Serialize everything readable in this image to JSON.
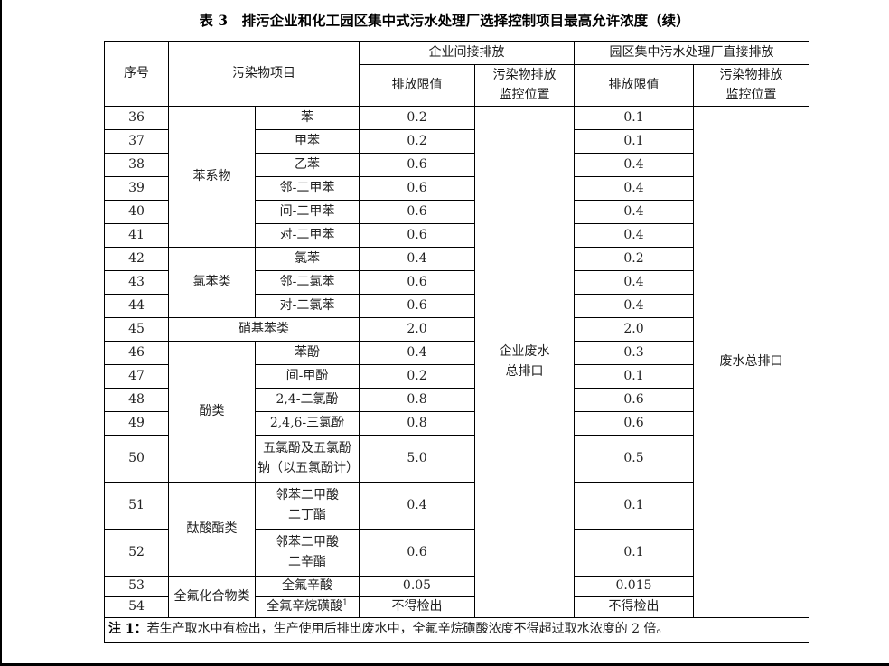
{
  "page": {
    "title": "表 3　排污企业和化工园区集中式污水处理厂选择控制项目最高允许浓度（续）"
  },
  "table": {
    "header": {
      "serial": "序号",
      "pollutant": "污染物项目",
      "group_enterprise": "企业间接排放",
      "group_park": "园区集中污水处理厂直接排放",
      "limit_enterprise": "排放限值",
      "limit_park": "排放限值",
      "monitor_enterprise_lines": [
        "污染物排放",
        "监控位置"
      ],
      "monitor_park_lines": [
        "污染物排放",
        "监控位置"
      ]
    },
    "monitor_enterprise_lines": [
      "企业废水",
      "总排口"
    ],
    "monitor_park_lines": [
      "废水总排口"
    ],
    "rows": [
      {
        "no": "36",
        "category": "苯系物",
        "category_rowspan": 6,
        "item": "苯",
        "limit1": "0.2",
        "limit2": "0.1"
      },
      {
        "no": "37",
        "item": "甲苯",
        "limit1": "0.2",
        "limit2": "0.1"
      },
      {
        "no": "38",
        "item": "乙苯",
        "limit1": "0.6",
        "limit2": "0.4"
      },
      {
        "no": "39",
        "item": "邻-二甲苯",
        "limit1": "0.6",
        "limit2": "0.4"
      },
      {
        "no": "40",
        "item": "间-二甲苯",
        "limit1": "0.6",
        "limit2": "0.4"
      },
      {
        "no": "41",
        "item": "对-二甲苯",
        "limit1": "0.6",
        "limit2": "0.4"
      },
      {
        "no": "42",
        "category": "氯苯类",
        "category_rowspan": 3,
        "item": "氯苯",
        "limit1": "0.4",
        "limit2": "0.2"
      },
      {
        "no": "43",
        "item": "邻-二氯苯",
        "limit1": "0.6",
        "limit2": "0.4"
      },
      {
        "no": "44",
        "item": "对-二氯苯",
        "limit1": "0.6",
        "limit2": "0.4"
      },
      {
        "no": "45",
        "item": "硝基苯类",
        "item_colspan": 2,
        "limit1": "2.0",
        "limit2": "2.0"
      },
      {
        "no": "46",
        "category": "酚类",
        "category_rowspan": 5,
        "item": "苯酚",
        "limit1": "0.4",
        "limit2": "0.3"
      },
      {
        "no": "47",
        "item": "间-甲酚",
        "limit1": "0.2",
        "limit2": "0.1"
      },
      {
        "no": "48",
        "item": "2,4-二氯酚",
        "limit1": "0.8",
        "limit2": "0.6"
      },
      {
        "no": "49",
        "item": "2,4,6-三氯酚",
        "limit1": "0.8",
        "limit2": "0.6"
      },
      {
        "no": "50",
        "item_lines": [
          "五氯酚及五氯酚",
          "钠（以五氯酚计）"
        ],
        "limit1": "5.0",
        "limit2": "0.5",
        "size": "tall"
      },
      {
        "no": "51",
        "category": "酞酸酯类",
        "category_rowspan": 2,
        "item_lines": [
          "邻苯二甲酸",
          "二丁酯"
        ],
        "limit1": "0.4",
        "limit2": "0.1",
        "size": "tall"
      },
      {
        "no": "52",
        "item_lines": [
          "邻苯二甲酸",
          "二辛酯"
        ],
        "limit1": "0.6",
        "limit2": "0.1",
        "size": "tall"
      },
      {
        "no": "53",
        "category": "全氟化合物类",
        "category_rowspan": 2,
        "item": "全氟辛酸",
        "limit1": "0.05",
        "limit2": "0.015",
        "size": "short"
      },
      {
        "no": "54",
        "item": "全氟辛烷磺酸",
        "item_sup": "1",
        "limit1": "不得检出",
        "limit2": "不得检出",
        "size": "short"
      }
    ],
    "note": {
      "label": "注 1：",
      "text": "若生产取水中有检出，生产使用后排出废水中，全氟辛烷磺酸浓度不得超过取水浓度的 2 倍。"
    }
  }
}
